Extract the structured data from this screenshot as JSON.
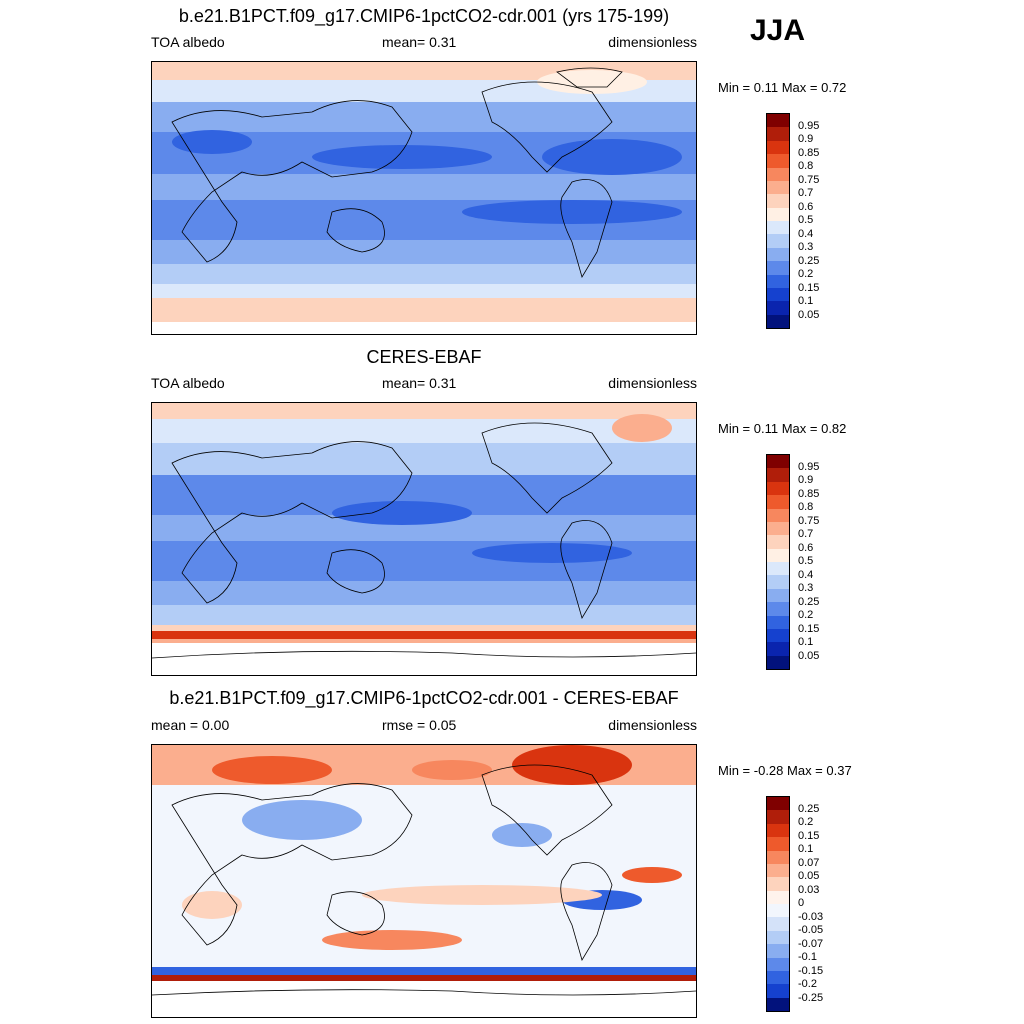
{
  "season": "JJA",
  "panels": [
    {
      "title": "b.e21.B1PCT.f09_g17.CMIP6-1pctCO2-cdr.001 (yrs 175-199)",
      "left": "TOA albedo",
      "center": "mean=   0.31",
      "right": "dimensionless",
      "minmax": "Min =   0.11 Max =   0.72",
      "kind": "model"
    },
    {
      "title": "CERES-EBAF",
      "left": "TOA albedo",
      "center": "mean=   0.31",
      "right": "dimensionless",
      "minmax": "Min =   0.11 Max =   0.82",
      "kind": "obs"
    },
    {
      "title": "b.e21.B1PCT.f09_g17.CMIP6-1pctCO2-cdr.001 - CERES-EBAF",
      "left": "mean =   0.00",
      "center": "rmse =   0.05",
      "right": "dimensionless",
      "minmax": "Min =  -0.28 Max =   0.37",
      "kind": "diff"
    }
  ],
  "colorbar_abs": {
    "labels": [
      "0.95",
      "0.9",
      "0.85",
      "0.8",
      "0.75",
      "0.7",
      "0.6",
      "0.5",
      "0.4",
      "0.3",
      "0.25",
      "0.2",
      "0.15",
      "0.1",
      "0.05"
    ],
    "colors": [
      "#7f0000",
      "#b01e0a",
      "#d9340f",
      "#ee5a2c",
      "#f7875e",
      "#fbae8e",
      "#fdd3bd",
      "#fff0e4",
      "#dbe8fb",
      "#b3cdf6",
      "#89adf0",
      "#5d89ea",
      "#3163e0",
      "#1541cf",
      "#0a24ae",
      "#02127c"
    ]
  },
  "colorbar_diff": {
    "labels": [
      "0.25",
      "0.2",
      "0.15",
      "0.1",
      "0.07",
      "0.05",
      "0.03",
      "0",
      "-0.03",
      "-0.05",
      "-0.07",
      "-0.1",
      "-0.15",
      "-0.2",
      "-0.25"
    ],
    "colors": [
      "#7f0000",
      "#b01e0a",
      "#d9340f",
      "#ee5a2c",
      "#f7875e",
      "#fbae8e",
      "#fdd3bd",
      "#fff3ec",
      "#f2f6fd",
      "#d4e2f9",
      "#b3cdf6",
      "#89adf0",
      "#5d89ea",
      "#3163e0",
      "#1541cf",
      "#02127c"
    ]
  }
}
